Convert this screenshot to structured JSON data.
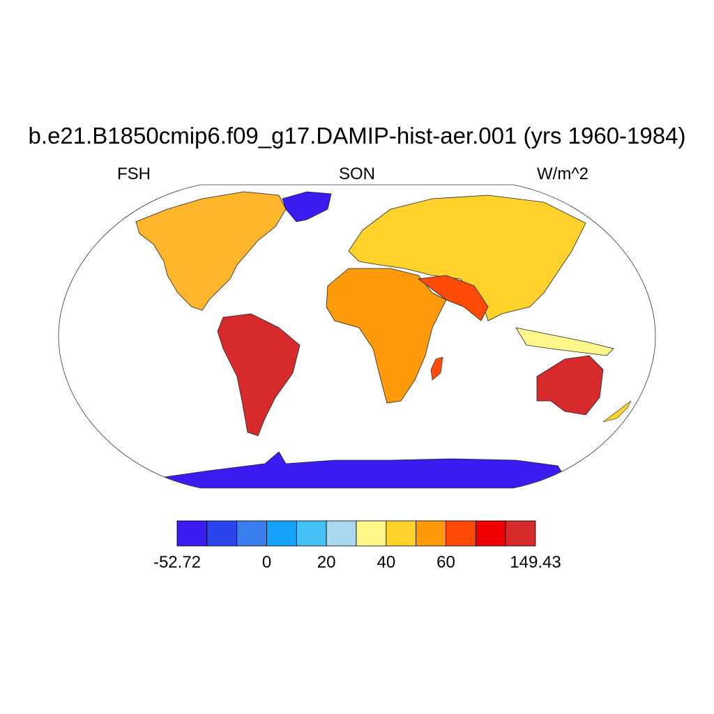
{
  "title": "b.e21.B1850cmip6.f09_g17.DAMIP-hist-aer.001 (yrs 1960-1984)",
  "subtitle_left": "FSH",
  "subtitle_center": "SON",
  "subtitle_right": "W/m^2",
  "colorbar": {
    "colors": [
      "#3b1cf0",
      "#2a45ec",
      "#3a7ded",
      "#14a1f9",
      "#46c1f5",
      "#a9d9ef",
      "#fff78a",
      "#ffd22b",
      "#ff9a0a",
      "#ff4a08",
      "#ee0000",
      "#d62a2d"
    ],
    "labels": [
      {
        "text": "-52.72",
        "boundary": 0
      },
      {
        "text": "0",
        "boundary": 3
      },
      {
        "text": "20",
        "boundary": 5
      },
      {
        "text": "40",
        "boundary": 7
      },
      {
        "text": "60",
        "boundary": 9
      },
      {
        "text": "149.43",
        "boundary": 12
      }
    ]
  },
  "map": {
    "projection": "robinson",
    "land_fill": "#f0a52a",
    "ocean": "#ffffff"
  }
}
